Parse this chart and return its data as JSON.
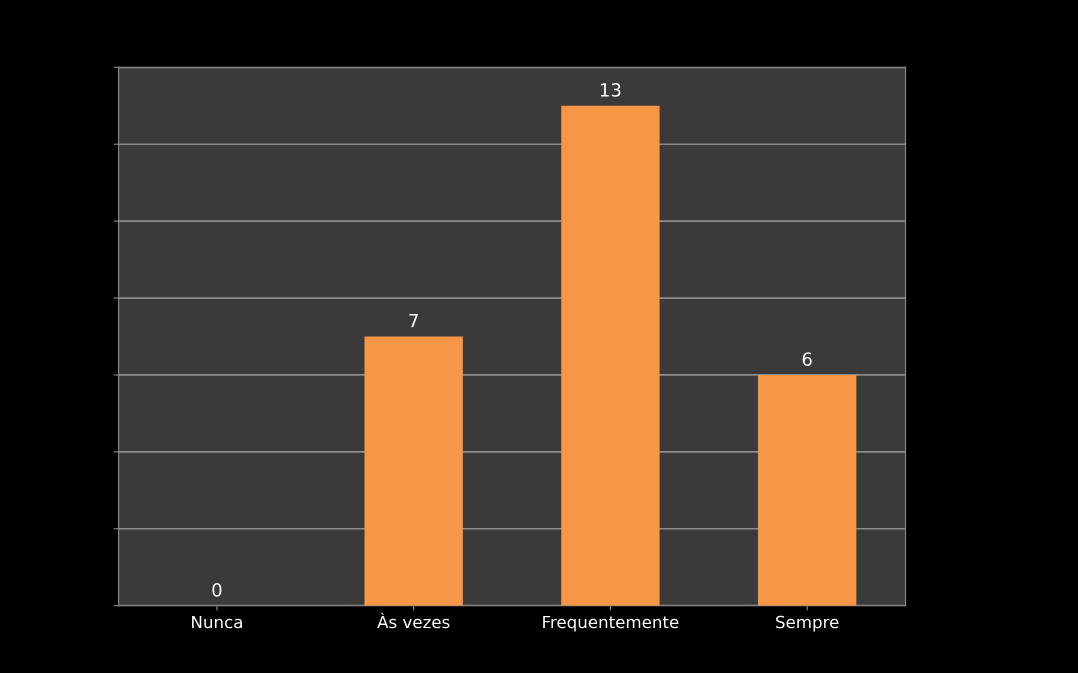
{
  "chart_data": {
    "type": "bar",
    "categories": [
      "Nunca",
      "Às vezes",
      "Frequentemente",
      "Sempre"
    ],
    "values": [
      0,
      7,
      13,
      6
    ],
    "color": "#f79646",
    "data_labels": true,
    "grid": "y",
    "tick_labels": "x",
    "ylim": [
      0,
      14
    ],
    "yticks": [
      {
        "value": 0,
        "label": null
      },
      {
        "value": 2,
        "label": null
      },
      {
        "value": 4,
        "label": null
      },
      {
        "value": 6,
        "label": null
      },
      {
        "value": 8,
        "label": null
      },
      {
        "value": 10,
        "label": null
      },
      {
        "value": 12,
        "label": null
      },
      {
        "value": 14,
        "label": null
      }
    ]
  }
}
